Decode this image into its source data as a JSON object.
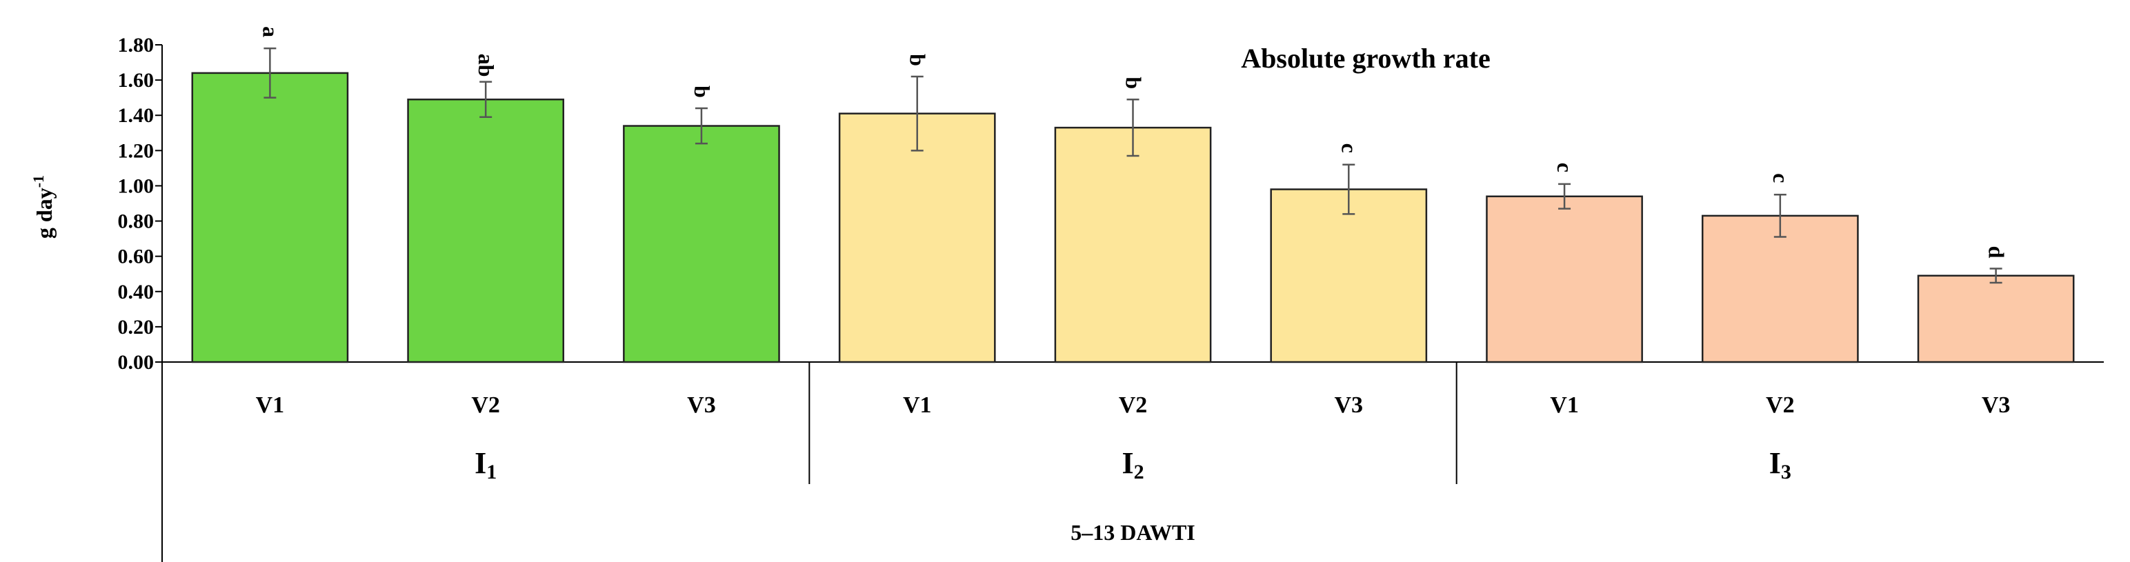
{
  "chart_data": {
    "type": "bar",
    "title": "Absolute growth rate",
    "ylabel": "g day",
    "ylabel_sup": "-1",
    "ylim": [
      0,
      1.8
    ],
    "yticks": [
      "0.00",
      "0.20",
      "0.40",
      "0.60",
      "0.80",
      "1.00",
      "1.20",
      "1.40",
      "1.60",
      "1.80"
    ],
    "categories": [
      "V1",
      "V2",
      "V3",
      "V1",
      "V2",
      "V3",
      "V1",
      "V2",
      "V3"
    ],
    "groups": [
      {
        "label": "I",
        "sub": "1"
      },
      {
        "label": "I",
        "sub": "2"
      },
      {
        "label": "I",
        "sub": "3"
      }
    ],
    "outer_label": "5–13 DAWTI",
    "values": [
      1.64,
      1.49,
      1.34,
      1.41,
      1.33,
      0.98,
      0.94,
      0.83,
      0.49
    ],
    "errors": [
      0.14,
      0.1,
      0.1,
      0.21,
      0.16,
      0.14,
      0.07,
      0.12,
      0.04
    ],
    "significance": [
      "a",
      "ab",
      "b",
      "b",
      "b",
      "c",
      "c",
      "c",
      "d"
    ],
    "colors": [
      "#6cd444",
      "#6cd444",
      "#6cd444",
      "#fde69a",
      "#fde69a",
      "#fde69a",
      "#fcc9a8",
      "#fcc9a8",
      "#fcc9a8"
    ],
    "grid": false,
    "legend": "none"
  }
}
